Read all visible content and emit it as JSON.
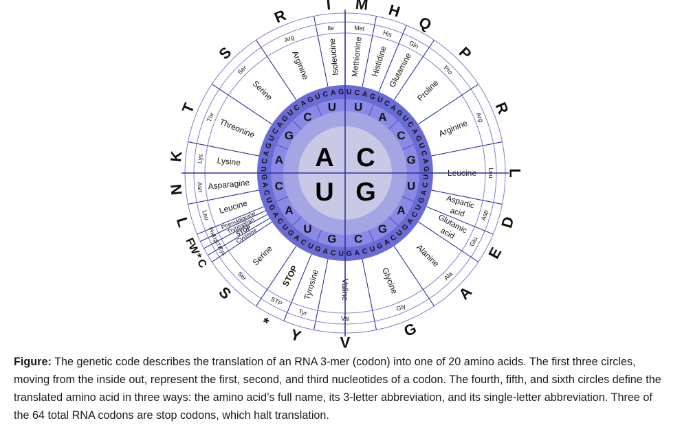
{
  "wheel": {
    "colors": {
      "center": "#c9c9e6",
      "ring1": "#a5a5e4",
      "ring2": "#8a8ae6",
      "ring3": "#6b6bd6",
      "lines": "#2f2fa8",
      "text": "#111111",
      "outline": "#7c7cd0"
    },
    "first": [
      {
        "base": "A",
        "start": 270,
        "end": 360
      },
      {
        "base": "C",
        "start": 0,
        "end": 90
      },
      {
        "base": "U",
        "start": 180,
        "end": 270
      },
      {
        "base": "G",
        "start": 90,
        "end": 180
      }
    ],
    "second": [
      "U",
      "A",
      "C",
      "G",
      "U",
      "A",
      "G",
      "C",
      "G",
      "U",
      "A",
      "C",
      "A",
      "G",
      "C",
      "U"
    ],
    "third": "UCAGUCAGUCAGUCAGUCAGUCAGUCAGUCAGUCAGUCAGUCAGUCAGUCAGUCAGUCAGUCAG",
    "amino": [
      {
        "name": "Isoleucine",
        "abbr": "Ile",
        "letter": "I"
      },
      {
        "name": "Methionine",
        "abbr": "Met",
        "letter": "M"
      },
      {
        "name": "Histidine",
        "abbr": "His",
        "letter": "H"
      },
      {
        "name": "Glutamine",
        "abbr": "Gln",
        "letter": "Q"
      },
      {
        "name": "Proline",
        "abbr": "Pro",
        "letter": "P"
      },
      {
        "name": "Arginine",
        "abbr": "Arg",
        "letter": "R"
      },
      {
        "name": "Leucine",
        "abbr": "Leu",
        "letter": "L"
      },
      {
        "name": "Aspartic acid",
        "abbr": "Asp",
        "letter": "D"
      },
      {
        "name": "Glutamic acid",
        "abbr": "Glu",
        "letter": "E"
      },
      {
        "name": "Alanine",
        "abbr": "Ala",
        "letter": "A"
      },
      {
        "name": "Glycine",
        "abbr": "Gly",
        "letter": "G"
      },
      {
        "name": "Valine",
        "abbr": "Val",
        "letter": "V"
      },
      {
        "name": "Tyrosine",
        "abbr": "Tyr",
        "letter": "Y"
      },
      {
        "name": "STOP",
        "abbr": "STP",
        "letter": "*"
      },
      {
        "name": "Serine",
        "abbr": "Ser",
        "letter": "S"
      },
      {
        "name": "Cysteine",
        "abbr": "Cys",
        "letter": "C"
      },
      {
        "name": "STOP",
        "abbr": "STP",
        "letter": "*"
      },
      {
        "name": "Tryptophan",
        "abbr": "Trp",
        "letter": "W"
      },
      {
        "name": "Phenylalanine",
        "abbr": "Phe",
        "letter": "F"
      },
      {
        "name": "Leucine",
        "abbr": "Leu",
        "letter": "L"
      },
      {
        "name": "Asparagine",
        "abbr": "Asn",
        "letter": "N"
      },
      {
        "name": "Lysine",
        "abbr": "Lys",
        "letter": "K"
      },
      {
        "name": "Threonine",
        "abbr": "Thr",
        "letter": "T"
      },
      {
        "name": "Serine",
        "abbr": "Ser",
        "letter": "S"
      },
      {
        "name": "Arginine",
        "abbr": "Arg",
        "letter": "R"
      }
    ]
  },
  "caption": {
    "label": "Figure:",
    "text": " The genetic code describes the translation of an RNA 3-mer (codon) into one of 20 amino acids. The first three circles, moving from the inside out, represent the first, second, and third nucleotides of a codon. The fourth, fifth, and sixth circles define the translated amino acid in three ways: the amino acid’s full name, its 3-letter abbreviation, and its single-letter abbreviation. Three of the 64 total RNA codons are stop codons, which halt translation."
  }
}
